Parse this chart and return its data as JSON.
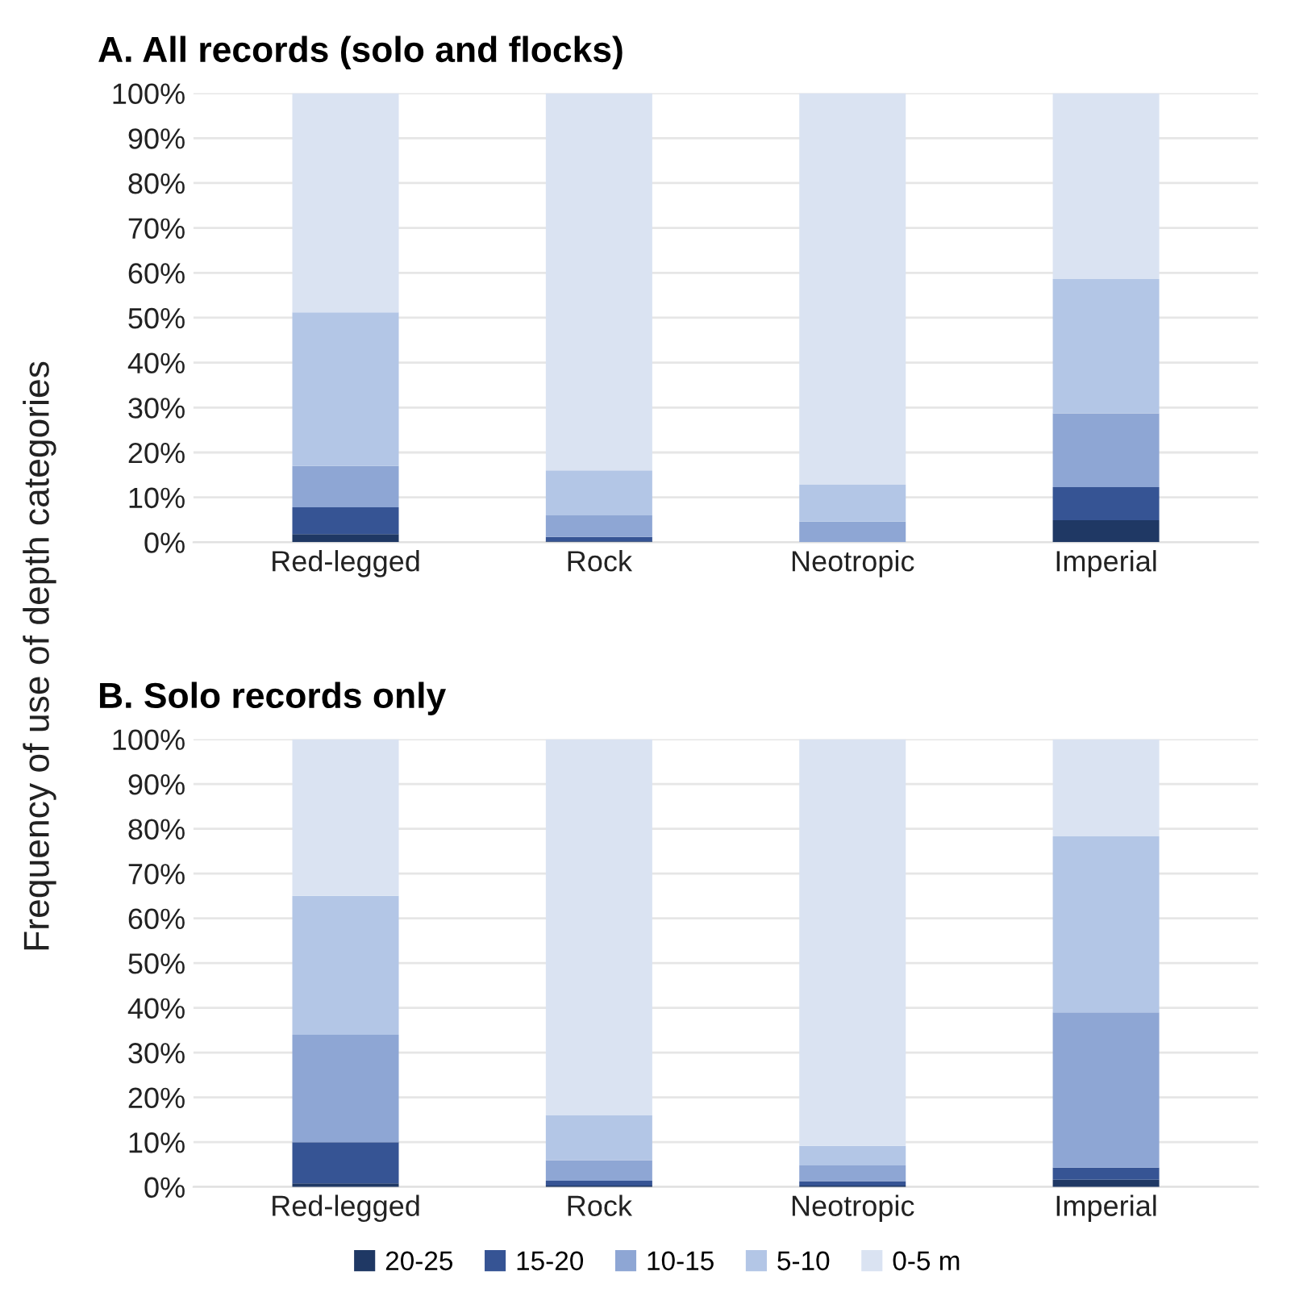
{
  "chart_data": [
    {
      "type": "bar",
      "title": "A. All records (solo and flocks)",
      "ylabel": "Frequency of use of depth categories",
      "categories": [
        "Red-legged",
        "Rock",
        "Neotropic",
        "Imperial"
      ],
      "stacked": true,
      "grid": "y",
      "legend": "bottom",
      "ylim": [
        0,
        100
      ],
      "yticks": [
        {
          "value": 0,
          "label": "0%"
        },
        {
          "value": 10,
          "label": "10%"
        },
        {
          "value": 20,
          "label": "20%"
        },
        {
          "value": 30,
          "label": "30%"
        },
        {
          "value": 40,
          "label": "40%"
        },
        {
          "value": 50,
          "label": "50%"
        },
        {
          "value": 60,
          "label": "60%"
        },
        {
          "value": 70,
          "label": "70%"
        },
        {
          "value": 80,
          "label": "80%"
        },
        {
          "value": 90,
          "label": "90%"
        },
        {
          "value": 100,
          "label": "100%"
        }
      ],
      "series": [
        {
          "name": "20-25",
          "color": "#1f3864",
          "values": [
            1.8,
            0.2,
            0,
            4.9
          ]
        },
        {
          "name": "15-20",
          "color": "#365494",
          "values": [
            6.0,
            1.0,
            0,
            7.4
          ]
        },
        {
          "name": "10-15",
          "color": "#8ea6d4",
          "values": [
            9.2,
            4.8,
            4.6,
            16.4
          ]
        },
        {
          "name": "5-10",
          "color": "#b3c6e6",
          "values": [
            34.2,
            10.0,
            8.2,
            29.9
          ]
        },
        {
          "name": "0-5 m",
          "color": "#dae3f2",
          "values": [
            48.8,
            84.0,
            87.2,
            41.4
          ]
        }
      ]
    },
    {
      "type": "bar",
      "title": "B. Solo records only",
      "categories": [
        "Red-legged",
        "Rock",
        "Neotropic",
        "Imperial"
      ],
      "stacked": true,
      "grid": "y",
      "ylim": [
        0,
        100
      ],
      "yticks": [
        {
          "value": 0,
          "label": "0%"
        },
        {
          "value": 10,
          "label": "10%"
        },
        {
          "value": 20,
          "label": "20%"
        },
        {
          "value": 30,
          "label": "30%"
        },
        {
          "value": 40,
          "label": "40%"
        },
        {
          "value": 50,
          "label": "50%"
        },
        {
          "value": 60,
          "label": "60%"
        },
        {
          "value": 70,
          "label": "70%"
        },
        {
          "value": 80,
          "label": "80%"
        },
        {
          "value": 90,
          "label": "90%"
        },
        {
          "value": 100,
          "label": "100%"
        }
      ],
      "series": [
        {
          "color": "#1f3864",
          "values": [
            0.8,
            0.3,
            0.3,
            1.6
          ]
        },
        {
          "color": "#365494",
          "values": [
            9.2,
            1.1,
            1.0,
            2.7
          ]
        },
        {
          "color": "#8ea6d4",
          "values": [
            24.0,
            4.6,
            3.5,
            34.7
          ]
        },
        {
          "color": "#b3c6e6",
          "values": [
            31.0,
            10.0,
            4.4,
            39.3
          ]
        },
        {
          "color": "#dae3f2",
          "values": [
            35.0,
            84.0,
            90.8,
            21.7
          ]
        }
      ]
    }
  ]
}
